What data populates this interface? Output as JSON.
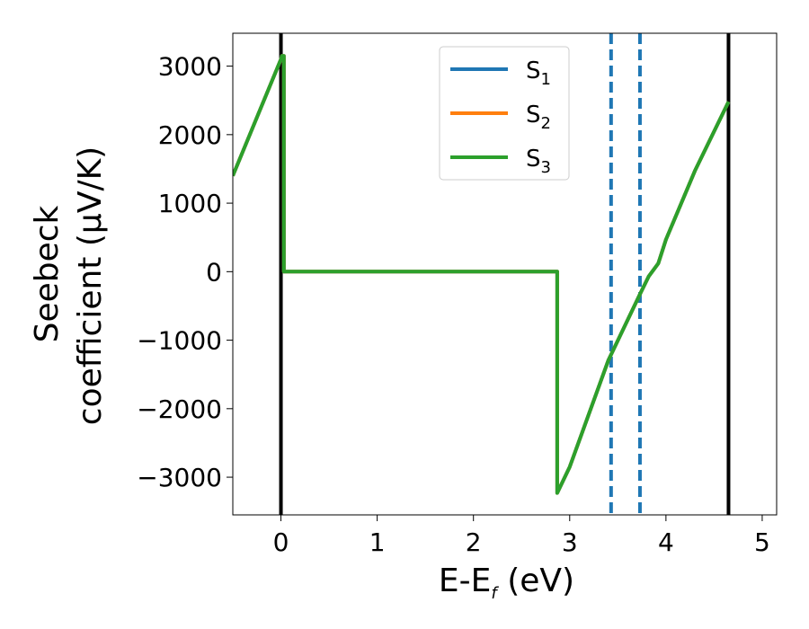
{
  "chart_data": {
    "type": "line",
    "xlabel": "E-E",
    "xlabel_sub": "f",
    "xlabel_unit": " (eV)",
    "ylabel_line1": "Seebeck",
    "ylabel_line2": "coefficient  (μV/K)",
    "xlim": [
      -0.5,
      5.15
    ],
    "ylim": [
      -3550,
      3480
    ],
    "xticks": [
      0,
      1,
      2,
      3,
      4,
      5
    ],
    "yticks": [
      -3000,
      -2000,
      -1000,
      0,
      1000,
      2000,
      3000
    ],
    "ytick_labels": [
      "−3000",
      "−2000",
      "−1000",
      "0",
      "1000",
      "2000",
      "3000"
    ],
    "grid": false,
    "legend_position": "top-center",
    "series": [
      {
        "name": "S",
        "sub": "1",
        "color": "#1f77b4",
        "x": [
          -0.5,
          0.0,
          0.01,
          0.03,
          0.03,
          2.87,
          2.87,
          3.0,
          3.4,
          3.73,
          3.82,
          3.92,
          4.0,
          4.3,
          4.65
        ],
        "y": [
          1400,
          3100,
          3150,
          3150,
          0,
          0,
          -3230,
          -2850,
          -1300,
          -330,
          -70,
          120,
          470,
          1470,
          2480
        ]
      },
      {
        "name": "S",
        "sub": "2",
        "color": "#ff7f0e",
        "x": [
          -0.5,
          0.0,
          0.01,
          0.03,
          0.03,
          2.87,
          2.87,
          3.0,
          3.4,
          3.73,
          3.82,
          3.92,
          4.0,
          4.3,
          4.65
        ],
        "y": [
          1400,
          3100,
          3150,
          3150,
          0,
          0,
          -3230,
          -2850,
          -1300,
          -330,
          -70,
          120,
          470,
          1470,
          2480
        ]
      },
      {
        "name": "S",
        "sub": "3",
        "color": "#2ca02c",
        "x": [
          -0.5,
          0.0,
          0.01,
          0.03,
          0.03,
          2.87,
          2.87,
          3.0,
          3.4,
          3.73,
          3.82,
          3.92,
          4.0,
          4.3,
          4.65
        ],
        "y": [
          1400,
          3100,
          3150,
          3150,
          0,
          0,
          -3230,
          -2850,
          -1300,
          -330,
          -70,
          120,
          470,
          1470,
          2480
        ]
      }
    ],
    "vlines": [
      {
        "x": 0.0,
        "style": "solid",
        "color": "#000000"
      },
      {
        "x": 4.65,
        "style": "solid",
        "color": "#000000"
      },
      {
        "x": 3.43,
        "style": "dashed",
        "color": "#1f77b4"
      },
      {
        "x": 3.73,
        "style": "dashed",
        "color": "#1f77b4"
      }
    ]
  }
}
